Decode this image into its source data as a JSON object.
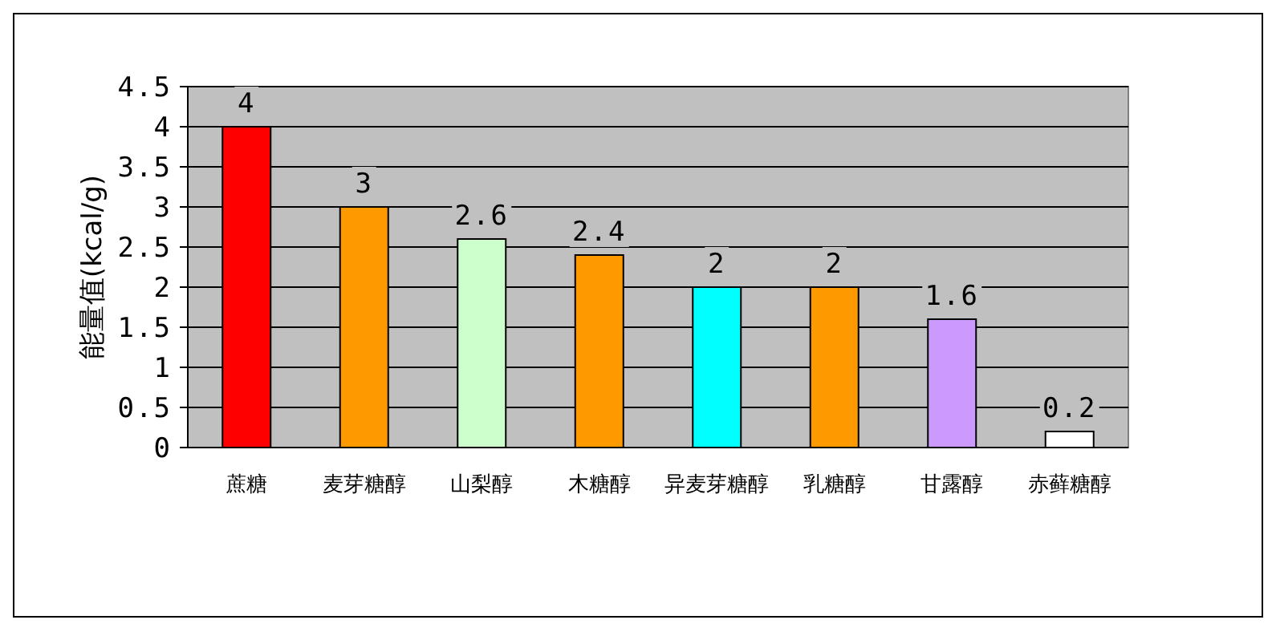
{
  "chart_data": {
    "type": "bar",
    "ylabel": "能量值(kcal/g)",
    "categories": [
      "蔗糖",
      "麦芽糖醇",
      "山梨醇",
      "木糖醇",
      "异麦芽糖醇",
      "乳糖醇",
      "甘露醇",
      "赤藓糖醇"
    ],
    "values": [
      4,
      3,
      2.6,
      2.4,
      2,
      2,
      1.6,
      0.2
    ],
    "colors": [
      "#ff0000",
      "#ff9900",
      "#ccffcc",
      "#ff9900",
      "#00ffff",
      "#ff9900",
      "#cc99ff",
      "#ffffff"
    ],
    "ylim": [
      0,
      4.5
    ],
    "yticks": [
      0,
      0.5,
      1,
      1.5,
      2,
      2.5,
      3,
      3.5,
      4,
      4.5
    ],
    "grid": "y",
    "data_labels": true
  }
}
